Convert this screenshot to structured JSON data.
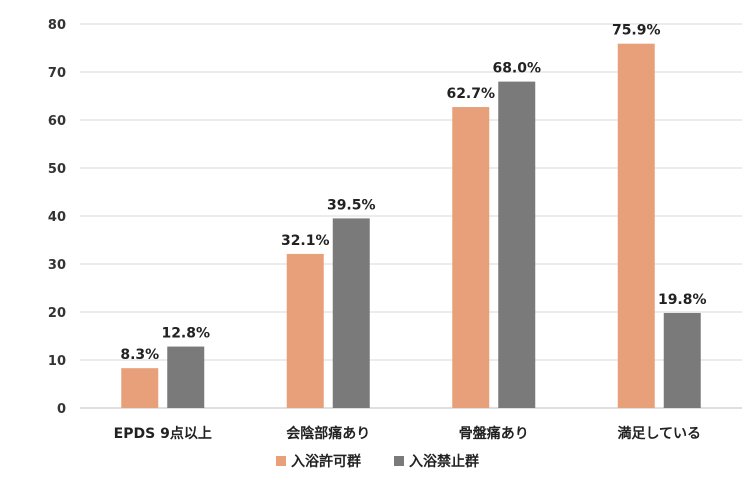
{
  "chart_data": {
    "type": "bar",
    "title": "",
    "xlabel": "",
    "ylabel": "",
    "categories": [
      "EPDS 9点以上",
      "会陰部痛あり",
      "骨盤痛あり",
      "満足している"
    ],
    "series": [
      {
        "name": "入浴許可群",
        "values": [
          8.3,
          32.1,
          62.7,
          75.9
        ],
        "labels": [
          "8.3%",
          "32.1%",
          "62.7%",
          "75.9%"
        ],
        "color": "#E8A07A"
      },
      {
        "name": "入浴禁止群",
        "values": [
          12.8,
          39.5,
          68.0,
          19.8
        ],
        "labels": [
          "12.8%",
          "39.5%",
          "68.0%",
          "19.8%"
        ],
        "color": "#7A7A7A"
      }
    ],
    "ylim": [
      0,
      80
    ],
    "yticks": [
      0,
      10,
      20,
      30,
      40,
      50,
      60,
      70,
      80
    ],
    "grid": true,
    "legend_position": "bottom-center"
  }
}
